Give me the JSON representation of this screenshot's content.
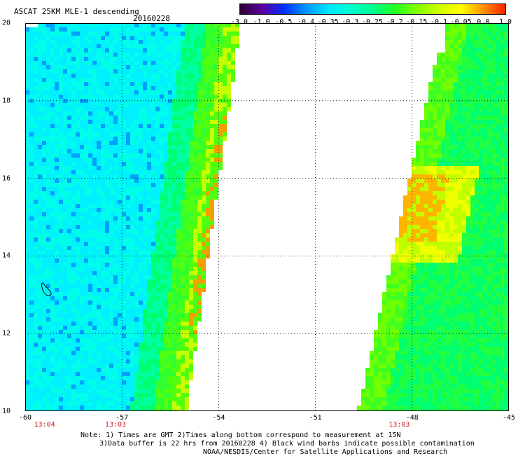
{
  "header": {
    "title": "ASCAT 25KM MLE-1 descending",
    "date": "20160228"
  },
  "colorbar": {
    "ticks": [
      "-3.0",
      "-1.0",
      "-0.5",
      "-0.4",
      "-0.35",
      "-0.3",
      "-0.25",
      "-0.2",
      "-0.15",
      "-0.1",
      "-0.05",
      "0.0",
      "1.0"
    ],
    "colors": [
      "#2a0030",
      "#5a00a0",
      "#0030ff",
      "#0096ff",
      "#00e6ff",
      "#00ffd0",
      "#00ff90",
      "#20ff20",
      "#80ff00",
      "#d0ff00",
      "#ffff00",
      "#ff9000",
      "#ff2000"
    ]
  },
  "map": {
    "lat_labels": [
      "20",
      "18",
      "16",
      "14",
      "12",
      "10"
    ],
    "lat_values": [
      20,
      18,
      16,
      14,
      12,
      10
    ],
    "lon_labels": [
      "-60",
      "-57",
      "-54",
      "-51",
      "-48",
      "-45"
    ],
    "lon_values": [
      -60,
      -57,
      -54,
      -51,
      -48,
      -45
    ],
    "lat_range": [
      10,
      20
    ],
    "lon_range": [
      -60,
      -45
    ],
    "time_labels": [
      "13:04",
      "13:03",
      "13:03"
    ],
    "time_lons": [
      -59.4,
      -57.2,
      -48.4
    ],
    "land_icon": "island-outline-icon",
    "grid": "dotted"
  },
  "notes": {
    "line1": "Note: 1) Times are GMT 2)Times along bottom correspond to measurement at 15N",
    "line2": "3)Data buffer is 22 hrs from 20160228 4) Black wind barbs indicate possible contamination",
    "line3": "NOAA/NESDIS/Center for Satellite Applications and Research"
  }
}
